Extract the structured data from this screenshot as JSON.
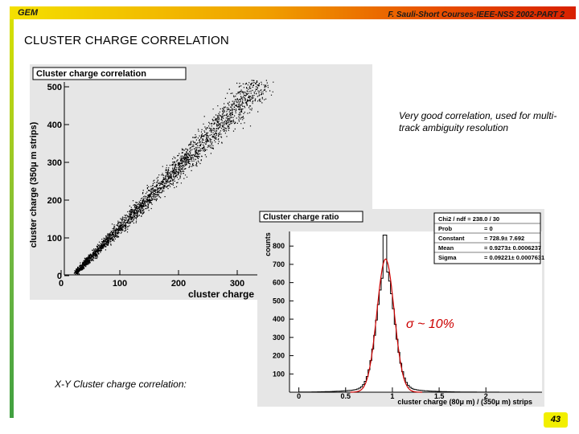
{
  "header": {
    "left": "GEM",
    "right": "F. Sauli-Short Courses-IEEE-NSS 2002-PART 2"
  },
  "title": "CLUSTER CHARGE CORRELATION",
  "note": "Very good correlation, used for multi-track ambiguity resolution",
  "sigma_label": "σ ~ 10%",
  "caption": "X-Y Cluster charge correlation:",
  "page_number": "43",
  "colors": {
    "header_start": "#f4e000",
    "header_end": "#d82000",
    "sidebar": "#70b840",
    "fit_curve": "#cc0000",
    "page_badge": "#f2ef00"
  },
  "chart_data": [
    {
      "type": "scatter",
      "title": "Cluster charge correlation",
      "xlabel": "cluster charge",
      "ylabel": "cluster charge (350μ m strips)",
      "xlim": [
        0,
        400
      ],
      "ylim": [
        0,
        520
      ],
      "x_ticks": [
        0,
        100,
        200,
        300
      ],
      "y_ticks": [
        0,
        100,
        200,
        300,
        400,
        500
      ],
      "band": {
        "start": [
          25,
          10
        ],
        "end": [
          340,
          510
        ],
        "width_start": 8,
        "width_end": 55
      },
      "grid": false
    },
    {
      "type": "line",
      "title": "Cluster charge ratio",
      "xlabel": "cluster charge (80μ m) / (350μ m) strips",
      "ylabel": "counts",
      "xlim": [
        -0.1,
        2.6
      ],
      "ylim": [
        0,
        880
      ],
      "x_ticks": [
        0,
        0.5,
        1,
        1.5,
        2
      ],
      "x_tick_labels": [
        "0",
        "0.5",
        "1",
        "1.5",
        "2"
      ],
      "y_ticks": [
        100,
        200,
        300,
        400,
        500,
        600,
        700,
        800
      ],
      "histogram_peak_x": 0.927,
      "histogram_peak_y": 860,
      "stats": [
        {
          "label": "Chi2 / ndf = 238.0 / 30",
          "value": ""
        },
        {
          "label": "Prob",
          "value": "= 0"
        },
        {
          "label": "Constant",
          "value": "= 728.9± 7.692"
        },
        {
          "label": "Mean",
          "value": "= 0.9273± 0.0006237"
        },
        {
          "label": "Sigma",
          "value": "= 0.09221± 0.0007631"
        }
      ],
      "fit": {
        "function": "gaussian",
        "constant": 728.9,
        "mean": 0.9273,
        "sigma": 0.09221
      }
    }
  ]
}
